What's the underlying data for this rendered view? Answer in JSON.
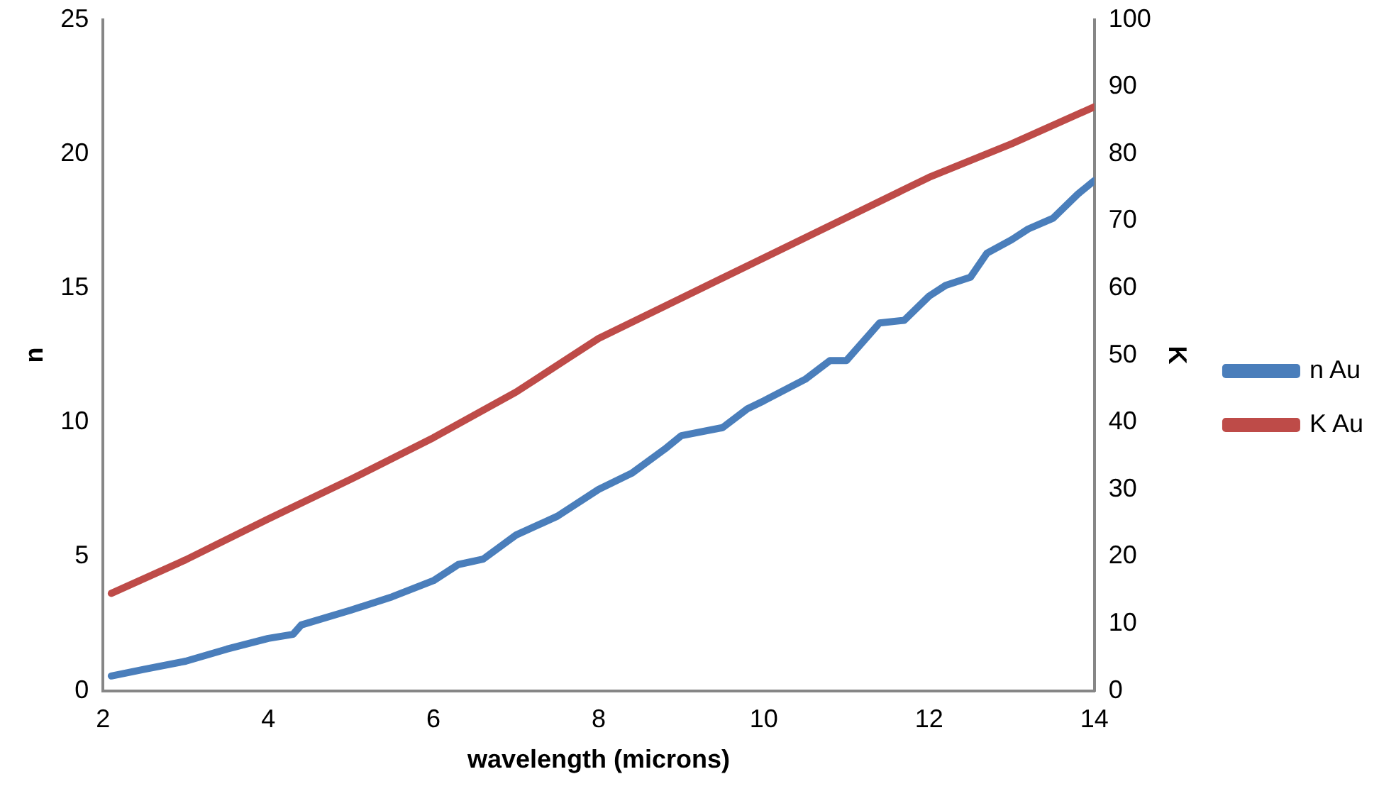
{
  "chart_data": {
    "type": "line",
    "xlabel": "wavelength (microns)",
    "ylabel": "n",
    "y2label": "K",
    "xlim": [
      2,
      14
    ],
    "xticks": [
      2,
      4,
      6,
      8,
      10,
      12,
      14
    ],
    "ylim": [
      0,
      25
    ],
    "yticks": [
      0,
      5,
      10,
      15,
      20,
      25
    ],
    "y2lim": [
      0,
      100
    ],
    "y2ticks": [
      0,
      10,
      20,
      30,
      40,
      50,
      60,
      70,
      80,
      90,
      100
    ],
    "grid": false,
    "legend": "right",
    "marker": "none",
    "series": [
      {
        "name": "n Au",
        "color": "#4a7ebb",
        "x": [
          2.1,
          2.5,
          3,
          3.5,
          4,
          4.3,
          4.4,
          5,
          5.5,
          6,
          6.3,
          6.6,
          7,
          7.5,
          8,
          8.4,
          8.8,
          9,
          9.5,
          9.8,
          10,
          10.5,
          10.8,
          11,
          11.4,
          11.7,
          12,
          12.2,
          12.5,
          12.7,
          13,
          13.2,
          13.5,
          13.8,
          14
        ],
        "values": [
          0.55,
          0.8,
          1.1,
          1.55,
          1.95,
          2.1,
          2.45,
          3.0,
          3.5,
          4.1,
          4.7,
          4.9,
          5.8,
          6.5,
          7.5,
          8.1,
          9.0,
          9.5,
          9.8,
          10.5,
          10.8,
          11.6,
          12.3,
          12.3,
          13.7,
          13.8,
          14.7,
          15.1,
          15.4,
          16.3,
          16.8,
          17.2,
          17.6,
          18.5,
          19.0
        ]
      },
      {
        "name": "K Au",
        "color": "#be4b48",
        "axis": "y2",
        "x": [
          2.1,
          3,
          4,
          5,
          6,
          7,
          8,
          9,
          10,
          11,
          12,
          13,
          14
        ],
        "values": [
          14.5,
          19.5,
          25.6,
          31.5,
          37.7,
          44.5,
          52.5,
          58.5,
          64.5,
          70.5,
          76.5,
          81.5,
          87
        ]
      }
    ]
  }
}
